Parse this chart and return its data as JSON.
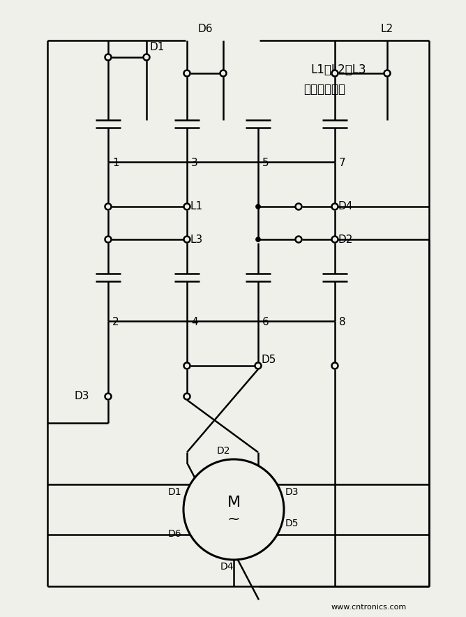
{
  "bg_color": "#f0f0eb",
  "line_color": "#000000",
  "line_width": 1.8,
  "annotation_color": "#000000",
  "font_size": 11,
  "watermark": "www.cntronics.com",
  "annotation_line1": "L1、L2、L3",
  "annotation_line2": "为电源进线端",
  "motor_label": "M",
  "motor_tilde": "~"
}
